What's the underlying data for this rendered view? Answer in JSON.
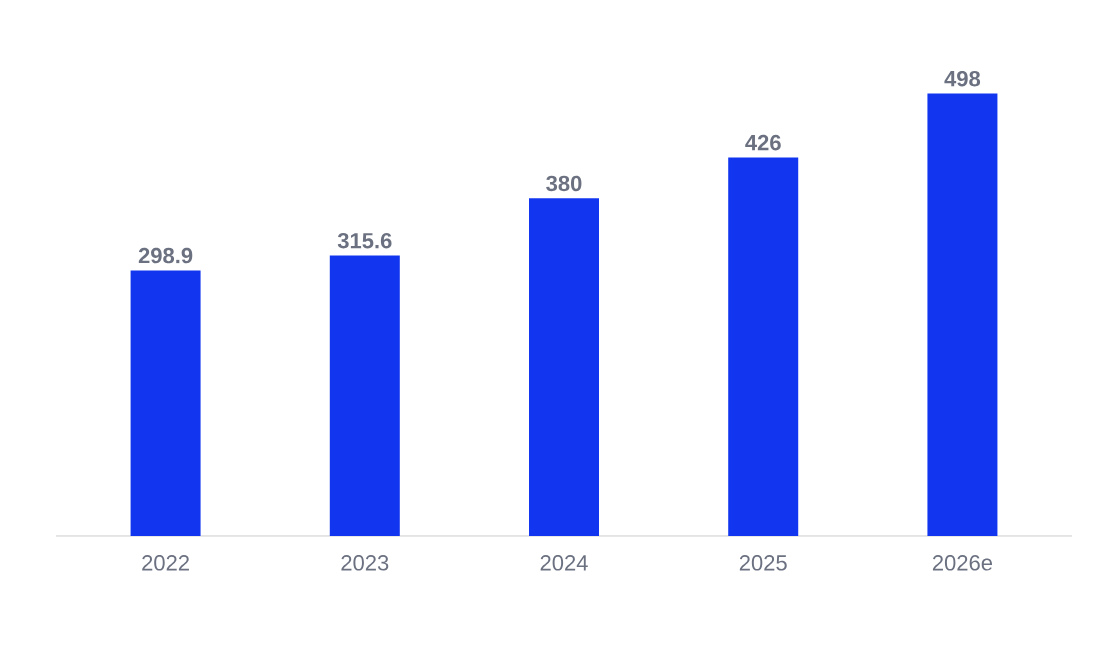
{
  "chart_data": {
    "type": "bar",
    "categories": [
      "2022",
      "2023",
      "2024",
      "2025",
      "2026e"
    ],
    "values": [
      298.9,
      315.6,
      380,
      426,
      498
    ],
    "color": "#1236f0",
    "data_labels": true
  }
}
